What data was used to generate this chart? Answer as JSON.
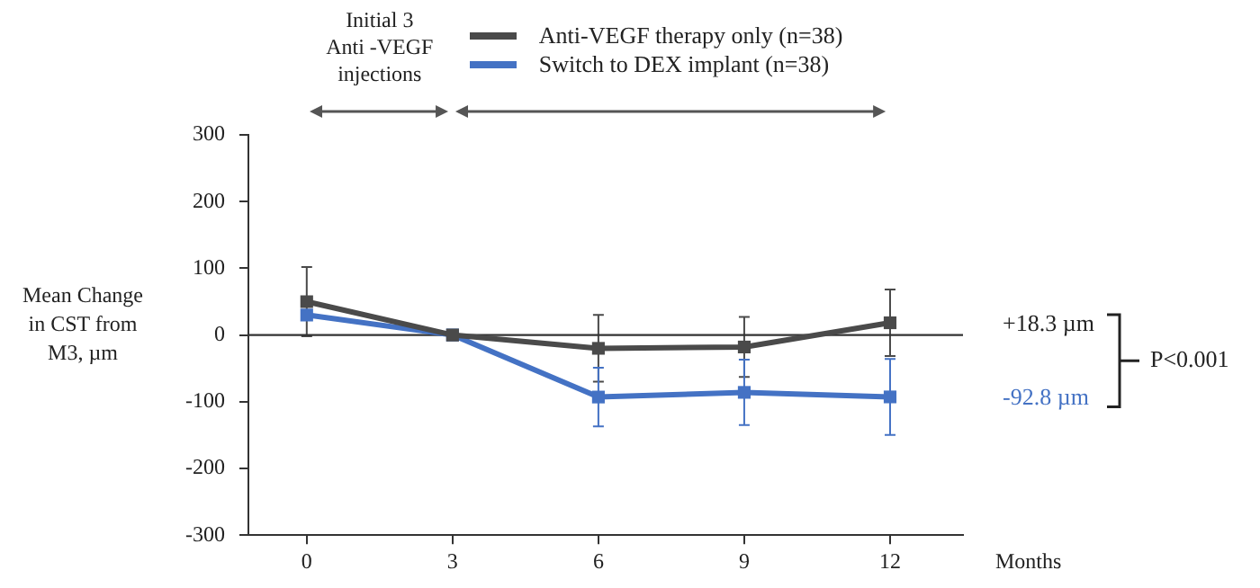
{
  "chart_data": {
    "type": "line",
    "x": [
      0,
      3,
      6,
      9,
      12
    ],
    "series": [
      {
        "name": "Anti-VEGF therapy only (n=38)",
        "color": "#4a4a4a",
        "values": [
          50,
          0,
          -20,
          -18,
          18.3
        ],
        "errors": [
          52,
          null,
          50,
          45,
          50
        ]
      },
      {
        "name": "Switch to DEX implant (n=38)",
        "color": "#4472c4",
        "values": [
          30,
          0,
          -93,
          -86,
          -92.8
        ],
        "errors": [
          null,
          null,
          44,
          49,
          57
        ]
      }
    ],
    "xlabel": "Months",
    "ylabel": "Mean Change\nin CST from\nM3, µm",
    "xlim": [
      -1.2,
      13.5
    ],
    "xticks": [
      0,
      3,
      6,
      9,
      12
    ],
    "ylim": [
      -300,
      300
    ],
    "yticks": [
      -300,
      -200,
      -100,
      0,
      100,
      200,
      300
    ],
    "grid": false,
    "legend": "top",
    "marker": "square",
    "line_style": "solid",
    "ref_lines": [
      {
        "axis": "y",
        "value": 0,
        "color": "#333333"
      }
    ],
    "annotations": [
      "P<0.001",
      "+18.3 µm",
      "-92.8 µm",
      "Initial 3\nAnti -VEGF\ninjections"
    ]
  }
}
